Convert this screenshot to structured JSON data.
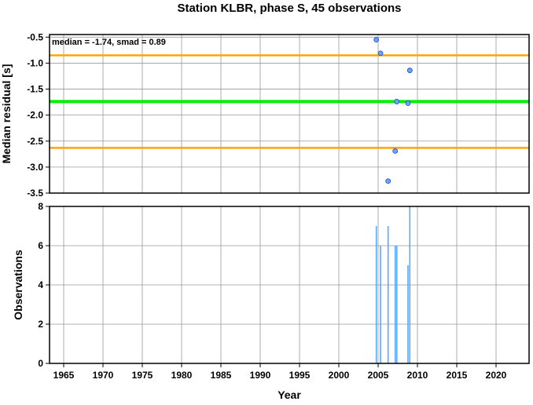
{
  "chart_data": [
    {
      "type": "scatter",
      "title": "Station KLBR, phase S, 45 observations",
      "annotation": "median = -1.74, smad = 0.89",
      "ylabel": "Median residual [s]",
      "xlim": [
        1963.2,
        2024.2
      ],
      "ylim": [
        -3.5,
        -0.45
      ],
      "yticks": [
        "-0.5",
        "-1.0",
        "-1.5",
        "-2.0",
        "-2.5",
        "-3.0",
        "-3.5"
      ],
      "grid": true,
      "median": -1.74,
      "bounds": [
        -0.85,
        -2.63
      ],
      "x": [
        2004.77,
        2005.3,
        2006.27,
        2007.17,
        2007.37,
        2008.8,
        2009.03
      ],
      "y": [
        -0.55,
        -0.81,
        -3.27,
        -2.69,
        -1.74,
        -1.77,
        -1.14
      ],
      "colors": {
        "points": "#6aa6f5",
        "median": "#00ee00",
        "bounds": "#ffa500"
      }
    },
    {
      "type": "bar",
      "ylabel": "Observations",
      "xlabel": "Year",
      "xlim": [
        1963.2,
        2024.2
      ],
      "ylim": [
        0,
        8
      ],
      "yticks": [
        "0",
        "2",
        "4",
        "6",
        "8"
      ],
      "xticks": [
        "1965",
        "1970",
        "1975",
        "1980",
        "1985",
        "1990",
        "1995",
        "2000",
        "2005",
        "2010",
        "2015",
        "2020"
      ],
      "grid": true,
      "x": [
        2004.77,
        2005.3,
        2006.27,
        2007.17,
        2007.37,
        2008.8,
        2009.03
      ],
      "values": [
        7,
        6,
        7,
        6,
        6,
        5,
        8
      ],
      "colors": {
        "bars": "#55aaff"
      }
    }
  ]
}
